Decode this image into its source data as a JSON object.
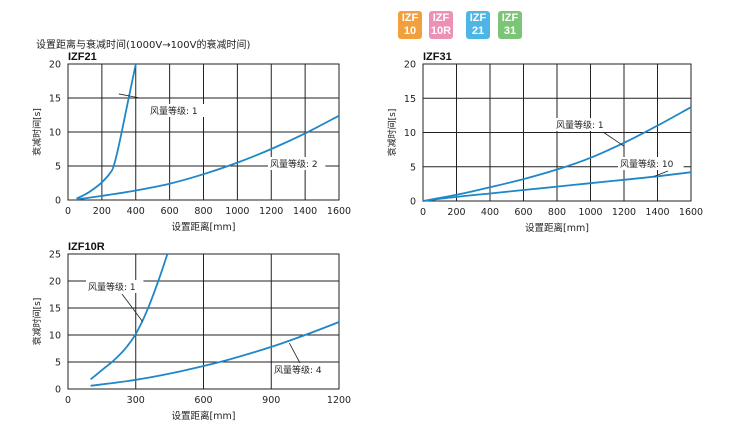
{
  "header": {
    "title": "设置距离与衰减时间(1000V→100V的衰减时间)",
    "badges": [
      {
        "line1": "IZF",
        "line2": "10",
        "color": "#f2a03d"
      },
      {
        "line1": "IZF",
        "line2": "10R",
        "color": "#ee8fb5"
      },
      {
        "line1": "IZF",
        "line2": "21",
        "color": "#4fb5e5"
      },
      {
        "line1": "IZF",
        "line2": "31",
        "color": "#7cc576"
      }
    ]
  },
  "chart_data": [
    {
      "type": "line",
      "title": "IZF21",
      "xlabel": "设置距离[mm]",
      "ylabel": "衰减时间[s]",
      "xlim": [
        0,
        1600
      ],
      "ylim": [
        0,
        20
      ],
      "xticks": [
        "0",
        "200",
        "400",
        "600",
        "800",
        "1000",
        "1200",
        "1400",
        "1600"
      ],
      "yticks": [
        "0",
        "5",
        "10",
        "15",
        "20"
      ],
      "series": [
        {
          "name": "风量等级: 1",
          "x": [
            50,
            100,
            150,
            200,
            250,
            270,
            300,
            350,
            400
          ],
          "y": [
            0.2,
            0.8,
            1.6,
            2.6,
            4.0,
            5.0,
            8.0,
            14.0,
            20.0
          ]
        },
        {
          "name": "风量等级: 2",
          "x": [
            50,
            200,
            400,
            600,
            800,
            1000,
            1200,
            1400,
            1600
          ],
          "y": [
            0.1,
            0.6,
            1.4,
            2.4,
            3.8,
            5.5,
            7.5,
            9.8,
            12.4
          ]
        }
      ]
    },
    {
      "type": "line",
      "title": "IZF31",
      "xlabel": "设置距离[mm]",
      "ylabel": "衰减时间[s]",
      "xlim": [
        0,
        1600
      ],
      "ylim": [
        0,
        20
      ],
      "xticks": [
        "0",
        "200",
        "400",
        "600",
        "800",
        "1000",
        "1200",
        "1400",
        "1600"
      ],
      "yticks": [
        "0",
        "5",
        "10",
        "15",
        "20"
      ],
      "series": [
        {
          "name": "风量等级: 1",
          "x": [
            0,
            200,
            400,
            600,
            800,
            1000,
            1200,
            1400,
            1600
          ],
          "y": [
            0,
            0.9,
            2.0,
            3.2,
            4.6,
            6.3,
            8.5,
            11.0,
            13.7
          ]
        },
        {
          "name": "风量等级: 10",
          "x": [
            0,
            200,
            400,
            600,
            800,
            1000,
            1200,
            1400,
            1600
          ],
          "y": [
            0,
            0.6,
            1.1,
            1.6,
            2.1,
            2.6,
            3.1,
            3.6,
            4.2
          ]
        }
      ]
    },
    {
      "type": "line",
      "title": "IZF10R",
      "xlabel": "设置距离[mm]",
      "ylabel": "衰减时间[s]",
      "xlim": [
        0,
        1200
      ],
      "ylim": [
        0,
        25
      ],
      "xticks": [
        "0",
        "300",
        "600",
        "900",
        "1200"
      ],
      "yticks": [
        "0",
        "5",
        "10",
        "15",
        "20",
        "25"
      ],
      "series": [
        {
          "name": "风量等级: 1",
          "x": [
            100,
            150,
            200,
            250,
            300,
            350,
            400,
            440
          ],
          "y": [
            1.8,
            3.5,
            5.2,
            7.3,
            10.2,
            14.5,
            20.0,
            25.0
          ]
        },
        {
          "name": "风量等级: 4",
          "x": [
            100,
            300,
            500,
            700,
            900,
            1050,
            1200
          ],
          "y": [
            0.6,
            1.7,
            3.3,
            5.3,
            7.8,
            10.0,
            12.4
          ]
        }
      ]
    }
  ]
}
